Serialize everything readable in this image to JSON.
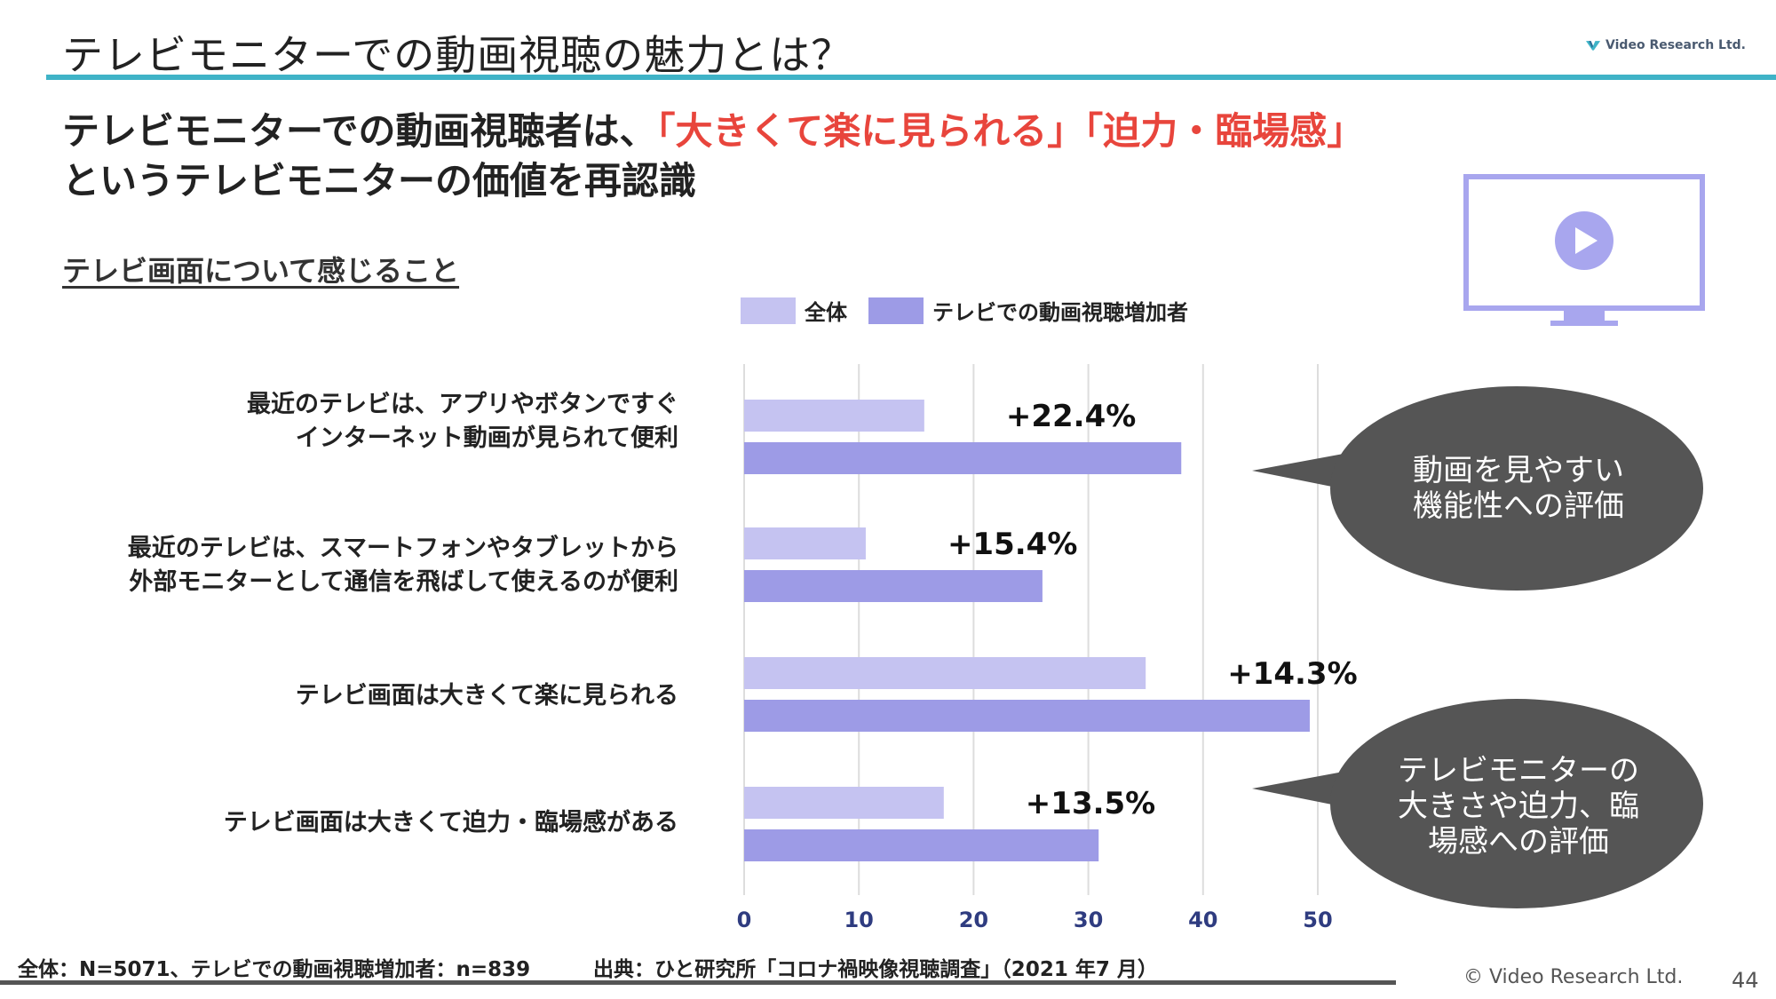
{
  "header": {
    "title": "テレビモニターでの動画視聴の魅力とは？",
    "logo_text": "Video Research Ltd."
  },
  "headline": {
    "line1_prefix": "テレビモニターでの動画視聴者は、",
    "line1_highlight": "「大きくて楽に見られる」「迫力・臨場感」",
    "line2": "というテレビモニターの価値を再認識"
  },
  "section_heading": "テレビ画面について感じること",
  "colors": {
    "accent_rule": "#3fb3c7",
    "highlight": "#e8453c",
    "bar_all": "#c5c3f1",
    "bar_increase": "#9d9be6",
    "monitor": "#a8a6ee",
    "bubble": "#555555"
  },
  "chart_data": {
    "type": "bar",
    "orientation": "horizontal",
    "categories": [
      [
        "最近のテレビは、アプリやボタンですぐ",
        "インターネット動画が見られて便利"
      ],
      [
        "最近のテレビは、スマートフォンやタブレットから",
        "外部モニターとして通信を飛ばして使えるのが便利"
      ],
      [
        "テレビ画面は大きくて楽に見られる"
      ],
      [
        "テレビ画面は大きくて迫力・臨場感がある"
      ]
    ],
    "series": [
      {
        "name": "全体",
        "values": [
          15.7,
          10.6,
          35.0,
          17.4
        ]
      },
      {
        "name": "テレビでの動画視聴増加者",
        "values": [
          38.1,
          26.0,
          49.3,
          30.9
        ]
      }
    ],
    "annotations": [
      "+22.4%",
      "+15.4%",
      "+14.3%",
      "+13.5%"
    ],
    "xlim": [
      0,
      50
    ],
    "xticks": [
      "0",
      "10",
      "20",
      "30",
      "40",
      "50"
    ],
    "grid": true,
    "legend": "top"
  },
  "bubbles": [
    {
      "lines": [
        "動画を見やすい",
        "機能性への評価"
      ]
    },
    {
      "lines": [
        "テレビモニターの",
        "大きさや迫力、臨",
        "場感への評価"
      ]
    }
  ],
  "footer": {
    "sample_note": "全体：N=5071、テレビでの動画視聴増加者：n=839",
    "source": "出典：ひと研究所「コロナ禍映像視聴調査」（2021 年7 月）",
    "copyright": "© Video Research Ltd.",
    "page_number": "44"
  }
}
